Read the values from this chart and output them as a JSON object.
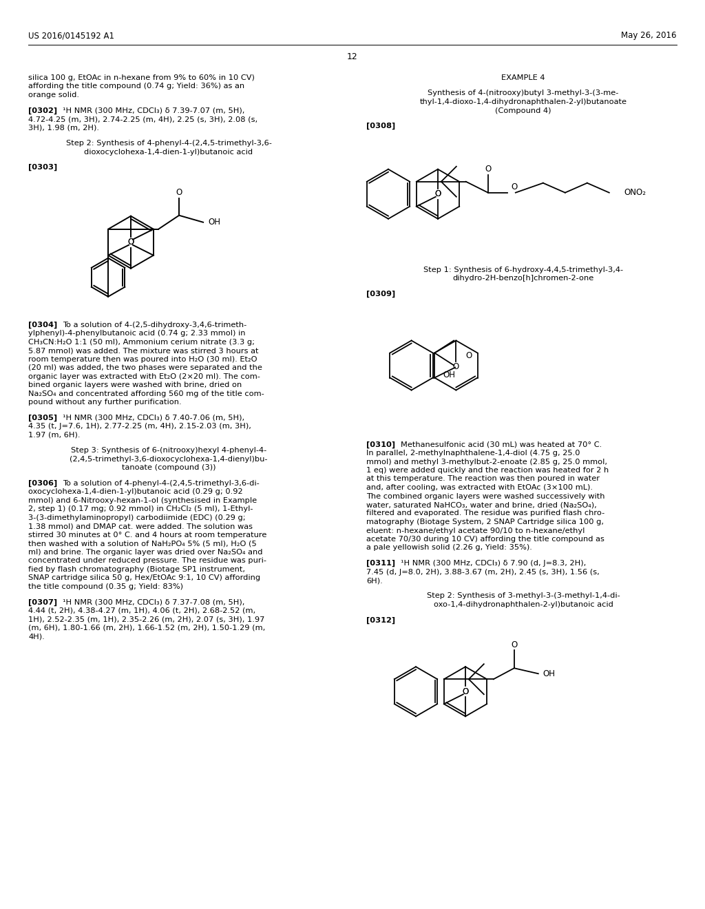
{
  "background_color": "#ffffff",
  "header_left": "US 2016/0145192 A1",
  "header_right": "May 26, 2016",
  "page_number": "12"
}
